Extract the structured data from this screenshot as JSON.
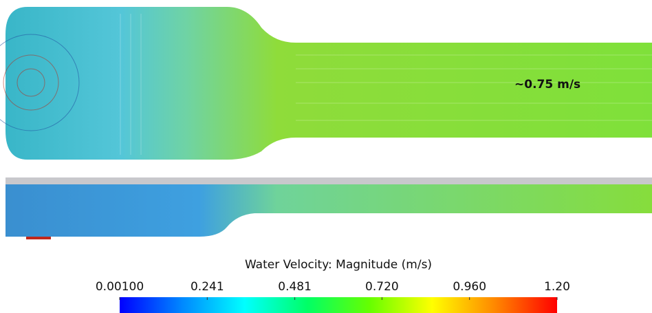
{
  "annotation": "~0.75 m/s",
  "colorbar": {
    "title": "Water Velocity: Magnitude (m/s)",
    "lim": [
      0.001,
      1.2
    ],
    "ticks": [
      {
        "value": 0.001,
        "label": "0.00100"
      },
      0.241,
      0.481,
      {
        "value": 0.72,
        "label": "0.720"
      },
      {
        "value": 0.96,
        "label": "0.960"
      },
      {
        "value": 1.2,
        "label": "1.20"
      }
    ],
    "colors": [
      "#0000ff",
      "#0088ff",
      "#00ffff",
      "#00ff66",
      "#66ff00",
      "#ffff00",
      "#ff8800",
      "#ff0000"
    ]
  }
}
